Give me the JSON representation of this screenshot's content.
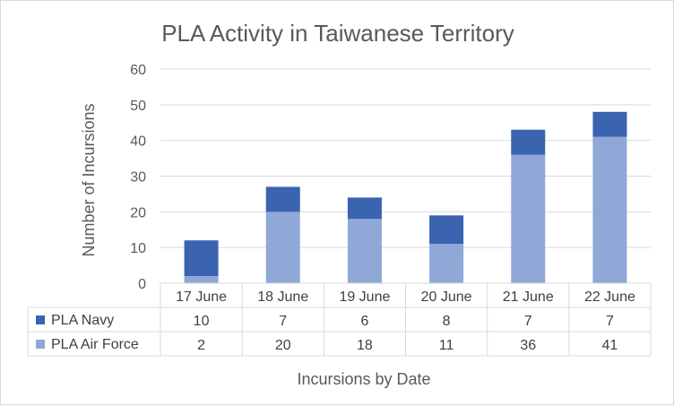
{
  "chart_data": {
    "type": "bar",
    "stacked": true,
    "title": "PLA Activity  in Taiwanese Territory",
    "ylabel": "Number  of Incursions",
    "xlabel": "Incursions by Date",
    "ylim": [
      0,
      60
    ],
    "yticks": [
      "0",
      "10",
      "20",
      "30",
      "40",
      "50",
      "60"
    ],
    "categories": [
      "17 June",
      "18 June",
      "19 June",
      "20 June",
      "21 June",
      "22 June"
    ],
    "series": [
      {
        "name": "PLA Air Force",
        "values": [
          2,
          20,
          18,
          11,
          36,
          41
        ],
        "color": "#8fa8d8"
      },
      {
        "name": "PLA Navy",
        "values": [
          10,
          7,
          6,
          8,
          7,
          7
        ],
        "color": "#3a63b0"
      }
    ],
    "data_table": true,
    "table_row_order": [
      "PLA Navy",
      "PLA Air Force"
    ],
    "grid": true
  }
}
